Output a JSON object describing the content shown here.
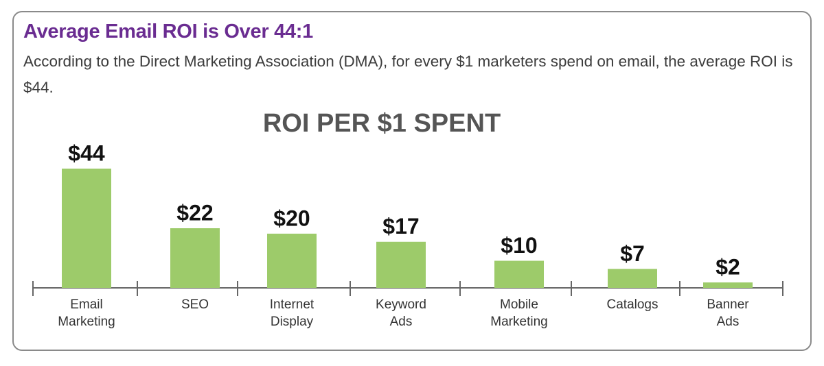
{
  "header": {
    "title": "Average Email ROI is Over 44:1",
    "description": "According to the Direct Marketing Association (DMA), for every $1 marketers spend on email, the average ROI is $44."
  },
  "chart_data": {
    "type": "bar",
    "title": "ROI PER $1 SPENT",
    "categories": [
      "Email Marketing",
      "SEO",
      "Internet Display",
      "Keyword Ads",
      "Mobile Marketing",
      "Catalogs",
      "Banner Ads"
    ],
    "values": [
      44,
      22,
      20,
      17,
      10,
      7,
      2
    ],
    "value_labels": [
      "$44",
      "$22",
      "$20",
      "$17",
      "$10",
      "$7",
      "$2"
    ],
    "color": "#9dcb6a"
  }
}
